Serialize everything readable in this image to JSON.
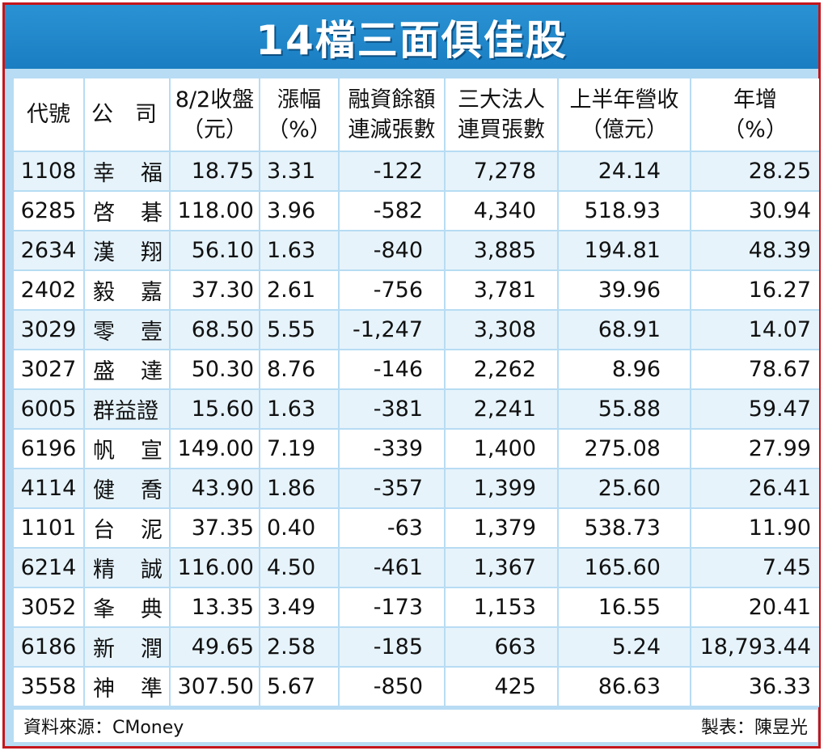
{
  "title": "14檔三面俱佳股",
  "headers": {
    "code": "代號",
    "name": "公　司",
    "close_line1": "8/2收盤",
    "close_line2": "（元）",
    "chg_line1": "漲幅",
    "chg_line2": "（%）",
    "margin_line1": "融資餘額",
    "margin_line2": "連減張數",
    "inst_line1": "三大法人",
    "inst_line2": "連買張數",
    "rev_line1": "上半年營收",
    "rev_line2": "（億元）",
    "yoy_line1": "年增",
    "yoy_line2": "（%）"
  },
  "rows": [
    {
      "code": "1108",
      "name": "幸福",
      "close": "18.75",
      "chg": "3.31",
      "margin": "-122",
      "inst": "7,278",
      "rev": "24.14",
      "yoy": "28.25"
    },
    {
      "code": "6285",
      "name": "啓碁",
      "close": "118.00",
      "chg": "3.96",
      "margin": "-582",
      "inst": "4,340",
      "rev": "518.93",
      "yoy": "30.94"
    },
    {
      "code": "2634",
      "name": "漢翔",
      "close": "56.10",
      "chg": "1.63",
      "margin": "-840",
      "inst": "3,885",
      "rev": "194.81",
      "yoy": "48.39"
    },
    {
      "code": "2402",
      "name": "毅嘉",
      "close": "37.30",
      "chg": "2.61",
      "margin": "-756",
      "inst": "3,781",
      "rev": "39.96",
      "yoy": "16.27"
    },
    {
      "code": "3029",
      "name": "零壹",
      "close": "68.50",
      "chg": "5.55",
      "margin": "-1,247",
      "inst": "3,308",
      "rev": "68.91",
      "yoy": "14.07"
    },
    {
      "code": "3027",
      "name": "盛達",
      "close": "50.30",
      "chg": "8.76",
      "margin": "-146",
      "inst": "2,262",
      "rev": "8.96",
      "yoy": "78.67"
    },
    {
      "code": "6005",
      "name": "群益證",
      "close": "15.60",
      "chg": "1.63",
      "margin": "-381",
      "inst": "2,241",
      "rev": "55.88",
      "yoy": "59.47"
    },
    {
      "code": "6196",
      "name": "帆宣",
      "close": "149.00",
      "chg": "7.19",
      "margin": "-339",
      "inst": "1,400",
      "rev": "275.08",
      "yoy": "27.99"
    },
    {
      "code": "4114",
      "name": "健喬",
      "close": "43.90",
      "chg": "1.86",
      "margin": "-357",
      "inst": "1,399",
      "rev": "25.60",
      "yoy": "26.41"
    },
    {
      "code": "1101",
      "name": "台泥",
      "close": "37.35",
      "chg": "0.40",
      "margin": "-63",
      "inst": "1,379",
      "rev": "538.73",
      "yoy": "11.90"
    },
    {
      "code": "6214",
      "name": "精誠",
      "close": "116.00",
      "chg": "4.50",
      "margin": "-461",
      "inst": "1,367",
      "rev": "165.60",
      "yoy": "7.45"
    },
    {
      "code": "3052",
      "name": "夆典",
      "close": "13.35",
      "chg": "3.49",
      "margin": "-173",
      "inst": "1,153",
      "rev": "16.55",
      "yoy": "20.41"
    },
    {
      "code": "6186",
      "name": "新潤",
      "close": "49.65",
      "chg": "2.58",
      "margin": "-185",
      "inst": "663",
      "rev": "5.24",
      "yoy": "18,793.44"
    },
    {
      "code": "3558",
      "name": "神準",
      "close": "307.50",
      "chg": "5.67",
      "margin": "-850",
      "inst": "425",
      "rev": "86.63",
      "yoy": "36.33"
    }
  ],
  "footer": {
    "source": "資料來源：CMoney",
    "credit": "製表：陳昱光"
  },
  "colors": {
    "title_bar": "#1a7ec2",
    "frame_border": "#c4161c",
    "background": "#b7dcf3",
    "row_stripe": "#e6f3fb"
  }
}
